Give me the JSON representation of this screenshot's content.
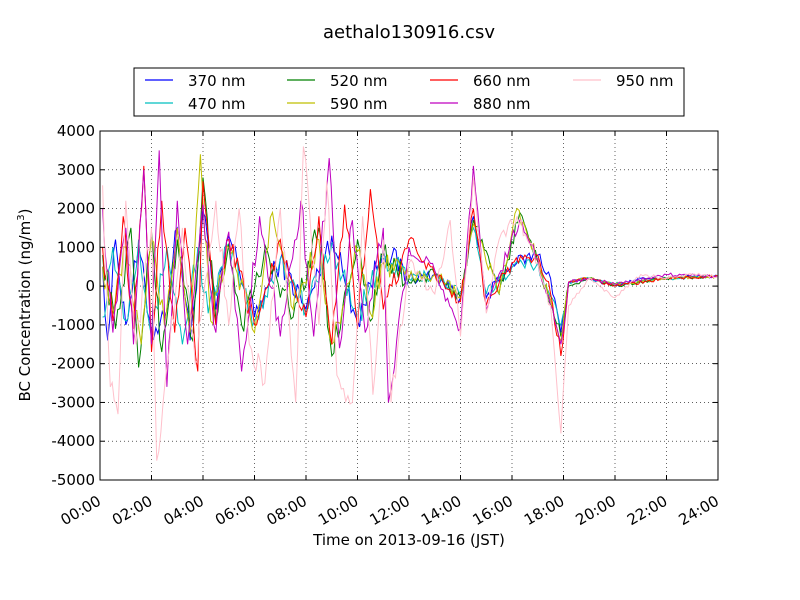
{
  "chart_data": {
    "type": "line",
    "title": "aethalo130916.csv",
    "xlabel": "Time on 2013-09-16 (JST)",
    "ylabel_main": "BC Concentration (ng/m",
    "ylabel_sup": "3",
    "ylabel_end": ")",
    "xlim_hours": [
      0,
      24
    ],
    "ylim": [
      -5000,
      4000
    ],
    "x_ticks": [
      "00:00",
      "02:00",
      "04:00",
      "06:00",
      "08:00",
      "10:00",
      "12:00",
      "14:00",
      "16:00",
      "18:00",
      "20:00",
      "22:00",
      "24:00"
    ],
    "y_ticks": [
      -5000,
      -4000,
      -3000,
      -2000,
      -1000,
      0,
      1000,
      2000,
      3000,
      4000
    ],
    "grid": true,
    "legend_position": "top",
    "series": [
      {
        "name": "370 nm",
        "color": "#0000ff"
      },
      {
        "name": "470 nm",
        "color": "#00bfbf"
      },
      {
        "name": "520 nm",
        "color": "#008000"
      },
      {
        "name": "590 nm",
        "color": "#bfbf00"
      },
      {
        "name": "660 nm",
        "color": "#ff0000"
      },
      {
        "name": "880 nm",
        "color": "#bf00bf"
      },
      {
        "name": "950 nm",
        "color": "#ffc0cb"
      }
    ],
    "key_points": {
      "370 nm": [
        [
          0.1,
          500
        ],
        [
          0.3,
          -1400
        ],
        [
          0.6,
          1200
        ],
        [
          1.0,
          -1000
        ],
        [
          1.5,
          1000
        ],
        [
          2.0,
          -1200
        ],
        [
          2.5,
          -800
        ],
        [
          3.0,
          1500
        ],
        [
          3.5,
          -1400
        ],
        [
          4.0,
          1900
        ],
        [
          4.5,
          -600
        ],
        [
          5.0,
          1300
        ],
        [
          6.0,
          -800
        ],
        [
          7.0,
          700
        ],
        [
          8.0,
          -600
        ],
        [
          9.0,
          1300
        ],
        [
          10.0,
          -900
        ],
        [
          11.0,
          1000
        ],
        [
          12.0,
          200
        ],
        [
          13.0,
          300
        ],
        [
          14.0,
          -300
        ],
        [
          14.5,
          1800
        ],
        [
          15.0,
          -300
        ],
        [
          16.0,
          600
        ],
        [
          17.0,
          800
        ],
        [
          17.5,
          200
        ],
        [
          17.9,
          -1200
        ],
        [
          18.2,
          100
        ],
        [
          19.0,
          200
        ],
        [
          20.0,
          0
        ],
        [
          21.0,
          200
        ],
        [
          22.0,
          200
        ],
        [
          23.0,
          250
        ],
        [
          24.0,
          250
        ]
      ],
      "470 nm": [
        [
          0.1,
          -800
        ],
        [
          0.5,
          1000
        ],
        [
          1.0,
          -900
        ],
        [
          1.5,
          1200
        ],
        [
          2.0,
          -1300
        ],
        [
          2.6,
          1000
        ],
        [
          3.2,
          -1500
        ],
        [
          3.8,
          1000
        ],
        [
          4.2,
          -700
        ],
        [
          5.0,
          1000
        ],
        [
          6.0,
          -900
        ],
        [
          7.0,
          700
        ],
        [
          8.0,
          -600
        ],
        [
          9.0,
          1100
        ],
        [
          10.0,
          -800
        ],
        [
          11.0,
          700
        ],
        [
          12.0,
          200
        ],
        [
          13.0,
          300
        ],
        [
          14.0,
          -200
        ],
        [
          14.5,
          1500
        ],
        [
          15.0,
          -200
        ],
        [
          16.0,
          500
        ],
        [
          17.0,
          600
        ],
        [
          17.9,
          -1000
        ],
        [
          18.2,
          100
        ],
        [
          19.0,
          200
        ],
        [
          20.0,
          50
        ],
        [
          22.0,
          200
        ],
        [
          24.0,
          250
        ]
      ],
      "520 nm": [
        [
          0.1,
          800
        ],
        [
          0.6,
          -1100
        ],
        [
          1.2,
          1500
        ],
        [
          1.5,
          -2100
        ],
        [
          2.0,
          1400
        ],
        [
          2.4,
          -1700
        ],
        [
          3.0,
          1200
        ],
        [
          3.6,
          -1400
        ],
        [
          4.0,
          2800
        ],
        [
          4.5,
          -900
        ],
        [
          5.0,
          1100
        ],
        [
          5.5,
          -1000
        ],
        [
          6.5,
          900
        ],
        [
          7.5,
          -800
        ],
        [
          8.5,
          1500
        ],
        [
          9.0,
          -1800
        ],
        [
          10.0,
          1200
        ],
        [
          10.5,
          -900
        ],
        [
          11.0,
          800
        ],
        [
          12.0,
          100
        ],
        [
          13.0,
          300
        ],
        [
          14.0,
          -300
        ],
        [
          14.5,
          1700
        ],
        [
          15.5,
          -200
        ],
        [
          16.3,
          1900
        ],
        [
          17.0,
          600
        ],
        [
          17.9,
          -1300
        ],
        [
          18.2,
          0
        ],
        [
          19.0,
          200
        ],
        [
          20.0,
          0
        ],
        [
          22.0,
          200
        ],
        [
          24.0,
          250
        ]
      ],
      "590 nm": [
        [
          0.1,
          500
        ],
        [
          0.5,
          -700
        ],
        [
          1.0,
          1000
        ],
        [
          1.6,
          -1500
        ],
        [
          2.0,
          1200
        ],
        [
          2.5,
          -1000
        ],
        [
          3.0,
          1500
        ],
        [
          3.5,
          -1200
        ],
        [
          3.9,
          3400
        ],
        [
          4.3,
          -900
        ],
        [
          5.0,
          1000
        ],
        [
          6.0,
          -1200
        ],
        [
          6.7,
          1900
        ],
        [
          7.5,
          -600
        ],
        [
          8.5,
          1200
        ],
        [
          9.0,
          -1500
        ],
        [
          10.0,
          900
        ],
        [
          10.5,
          -700
        ],
        [
          11.0,
          600
        ],
        [
          12.0,
          200
        ],
        [
          13.0,
          300
        ],
        [
          14.0,
          -300
        ],
        [
          14.5,
          1600
        ],
        [
          15.5,
          -200
        ],
        [
          16.2,
          2000
        ],
        [
          17.0,
          700
        ],
        [
          17.9,
          -1400
        ],
        [
          18.2,
          100
        ],
        [
          19.0,
          200
        ],
        [
          20.0,
          50
        ],
        [
          22.0,
          200
        ],
        [
          24.0,
          250
        ]
      ],
      "660 nm": [
        [
          0.1,
          1000
        ],
        [
          0.5,
          -900
        ],
        [
          0.9,
          1800
        ],
        [
          1.3,
          -1100
        ],
        [
          1.7,
          3100
        ],
        [
          2.0,
          -1700
        ],
        [
          2.4,
          2200
        ],
        [
          2.9,
          -1200
        ],
        [
          3.3,
          1500
        ],
        [
          3.8,
          -2200
        ],
        [
          4.0,
          2700
        ],
        [
          4.5,
          -1000
        ],
        [
          5.0,
          1200
        ],
        [
          6.0,
          -1000
        ],
        [
          7.0,
          1200
        ],
        [
          8.0,
          -800
        ],
        [
          8.5,
          1800
        ],
        [
          9.0,
          -1500
        ],
        [
          9.5,
          2100
        ],
        [
          10.0,
          -1100
        ],
        [
          10.5,
          2500
        ],
        [
          11.0,
          -600
        ],
        [
          12.0,
          1200
        ],
        [
          13.0,
          300
        ],
        [
          14.0,
          -400
        ],
        [
          14.5,
          2000
        ],
        [
          15.0,
          -500
        ],
        [
          16.0,
          600
        ],
        [
          17.0,
          800
        ],
        [
          17.5,
          -200
        ],
        [
          17.9,
          -1800
        ],
        [
          18.2,
          100
        ],
        [
          19.0,
          200
        ],
        [
          20.0,
          0
        ],
        [
          22.0,
          200
        ],
        [
          24.0,
          250
        ]
      ],
      "880 nm": [
        [
          0.1,
          2000
        ],
        [
          0.5,
          -1200
        ],
        [
          1.0,
          1500
        ],
        [
          1.3,
          -1500
        ],
        [
          1.7,
          3000
        ],
        [
          2.0,
          -1500
        ],
        [
          2.3,
          3500
        ],
        [
          2.6,
          -2600
        ],
        [
          3.0,
          2200
        ],
        [
          3.4,
          -1500
        ],
        [
          4.0,
          2100
        ],
        [
          4.5,
          -1200
        ],
        [
          5.0,
          1400
        ],
        [
          5.5,
          -2200
        ],
        [
          6.2,
          1800
        ],
        [
          7.0,
          -1300
        ],
        [
          7.8,
          2200
        ],
        [
          8.3,
          -1300
        ],
        [
          8.9,
          3300
        ],
        [
          9.3,
          -1600
        ],
        [
          9.8,
          1700
        ],
        [
          10.3,
          -1200
        ],
        [
          11.0,
          1500
        ],
        [
          11.2,
          -3000
        ],
        [
          12.0,
          1000
        ],
        [
          13.0,
          400
        ],
        [
          14.0,
          -1100
        ],
        [
          14.5,
          3100
        ],
        [
          15.0,
          -600
        ],
        [
          16.3,
          1700
        ],
        [
          17.0,
          700
        ],
        [
          17.5,
          -500
        ],
        [
          17.9,
          -1500
        ],
        [
          18.2,
          100
        ],
        [
          19.0,
          200
        ],
        [
          20.0,
          50
        ],
        [
          22.0,
          300
        ],
        [
          24.0,
          250
        ]
      ],
      "950 nm": [
        [
          0.1,
          2600
        ],
        [
          0.4,
          -2600
        ],
        [
          0.7,
          -3300
        ],
        [
          1.0,
          2200
        ],
        [
          1.4,
          -1500
        ],
        [
          2.0,
          1500
        ],
        [
          2.2,
          -4500
        ],
        [
          2.7,
          -1600
        ],
        [
          3.2,
          1500
        ],
        [
          3.7,
          -2000
        ],
        [
          4.0,
          -500
        ],
        [
          4.5,
          2200
        ],
        [
          5.0,
          -1000
        ],
        [
          5.4,
          2000
        ],
        [
          5.8,
          -1500
        ],
        [
          6.4,
          -2500
        ],
        [
          7.0,
          2000
        ],
        [
          7.6,
          -3000
        ],
        [
          7.9,
          3600
        ],
        [
          8.5,
          -1000
        ],
        [
          8.8,
          2700
        ],
        [
          9.2,
          -2300
        ],
        [
          9.8,
          -3000
        ],
        [
          10.2,
          1800
        ],
        [
          10.6,
          -2800
        ],
        [
          11.0,
          1200
        ],
        [
          11.3,
          -3000
        ],
        [
          12.0,
          600
        ],
        [
          13.0,
          -200
        ],
        [
          13.6,
          1700
        ],
        [
          14.0,
          -1300
        ],
        [
          14.5,
          2800
        ],
        [
          15.0,
          -700
        ],
        [
          15.5,
          1200
        ],
        [
          16.2,
          1800
        ],
        [
          17.0,
          600
        ],
        [
          17.5,
          -500
        ],
        [
          17.9,
          -3800
        ],
        [
          18.2,
          -500
        ],
        [
          19.0,
          200
        ],
        [
          20.0,
          -300
        ],
        [
          21.0,
          300
        ],
        [
          22.0,
          200
        ],
        [
          23.0,
          300
        ],
        [
          24.0,
          250
        ]
      ]
    }
  }
}
